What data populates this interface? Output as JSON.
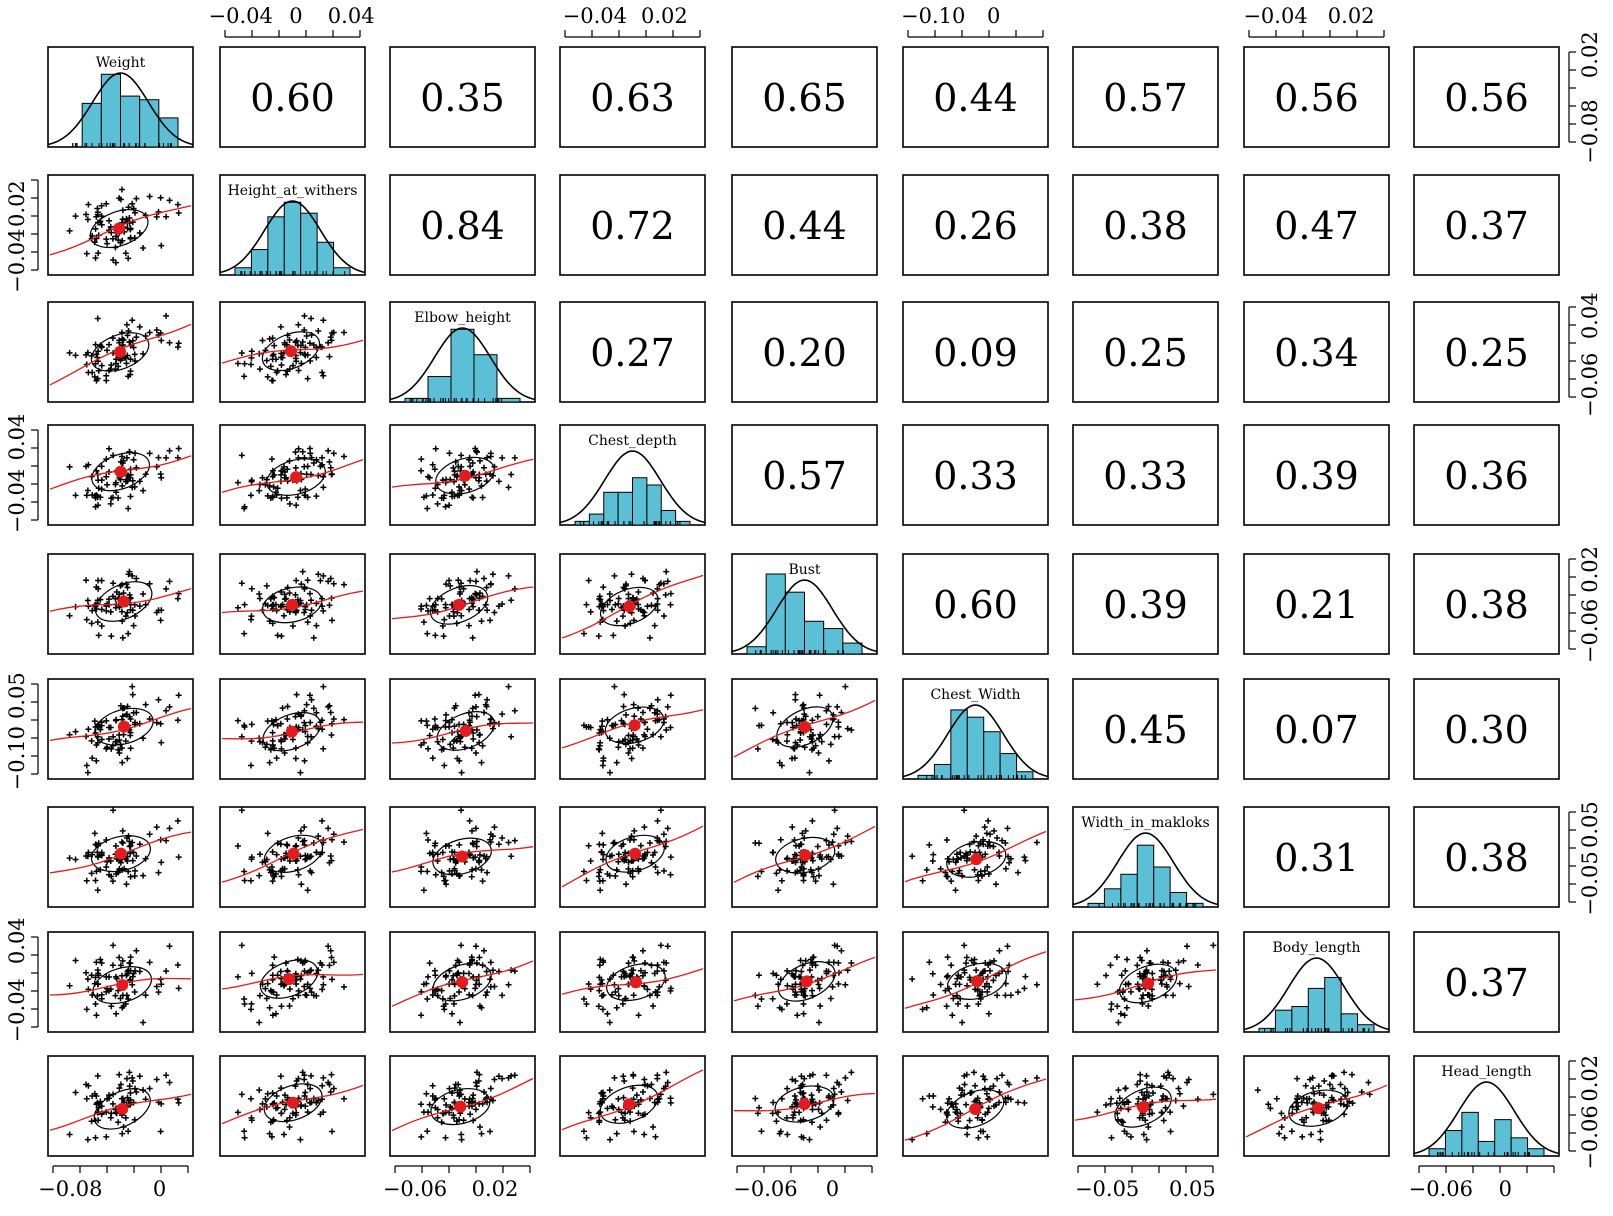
{
  "chart_data": {
    "type": "scatter-matrix",
    "variables": [
      "Weight",
      "Height_at_withers",
      "Elbow_height",
      "Chest_depth",
      "Bust",
      "Chest_Width",
      "Width_in_makloks",
      "Body_length",
      "Head_length"
    ],
    "correlations": [
      [
        "",
        "0.60",
        "0.35",
        "0.63",
        "0.65",
        "0.44",
        "0.57",
        "0.56",
        "0.56"
      ],
      [
        "",
        "",
        "0.84",
        "0.72",
        "0.44",
        "0.26",
        "0.38",
        "0.47",
        "0.37"
      ],
      [
        "",
        "",
        "",
        "0.27",
        "0.20",
        "0.09",
        "0.25",
        "0.34",
        "0.25"
      ],
      [
        "",
        "",
        "",
        "",
        "0.57",
        "0.33",
        "0.33",
        "0.39",
        "0.36"
      ],
      [
        "",
        "",
        "",
        "",
        "",
        "0.60",
        "0.39",
        "0.21",
        "0.38"
      ],
      [
        "",
        "",
        "",
        "",
        "",
        "",
        "0.45",
        "0.07",
        "0.30"
      ],
      [
        "",
        "",
        "",
        "",
        "",
        "",
        "",
        "0.31",
        "0.38"
      ],
      [
        "",
        "",
        "",
        "",
        "",
        "",
        "",
        "",
        "0.37"
      ]
    ],
    "axes": {
      "top": [
        {
          "col": 1,
          "ticks": [
            -0.04,
            0,
            0.04
          ],
          "labels": [
            "−0.04",
            "0",
            "0.04"
          ]
        },
        {
          "col": 3,
          "ticks": [
            -0.04,
            0.02
          ],
          "labels": [
            "−0.04",
            "0.02"
          ]
        },
        {
          "col": 5,
          "ticks": [
            -0.1,
            0
          ],
          "labels": [
            "−0.10",
            "0"
          ]
        },
        {
          "col": 7,
          "ticks": [
            -0.04,
            0.02
          ],
          "labels": [
            "−0.04",
            "0.02"
          ]
        }
      ],
      "bottom": [
        {
          "col": 0,
          "ticks": [
            -0.08,
            0
          ],
          "labels": [
            "−0.08",
            "0"
          ]
        },
        {
          "col": 2,
          "ticks": [
            -0.06,
            0.02
          ],
          "labels": [
            "−0.06",
            "0.02"
          ]
        },
        {
          "col": 4,
          "ticks": [
            -0.06,
            0
          ],
          "labels": [
            "−0.06",
            "0"
          ]
        },
        {
          "col": 6,
          "ticks": [
            -0.05,
            0.05
          ],
          "labels": [
            "−0.05",
            "0.05"
          ]
        },
        {
          "col": 8,
          "ticks": [
            -0.06,
            0
          ],
          "labels": [
            "−0.06",
            "0"
          ]
        }
      ],
      "left": [
        {
          "row": 1,
          "ticks": [
            -0.04,
            0.02
          ],
          "labels": [
            "−0.04",
            "0.02"
          ]
        },
        {
          "row": 3,
          "ticks": [
            -0.04,
            0.04
          ],
          "labels": [
            "−0.04",
            "0.04"
          ]
        },
        {
          "row": 5,
          "ticks": [
            -0.1,
            0.05
          ],
          "labels": [
            "−0.10",
            "0.05"
          ]
        },
        {
          "row": 7,
          "ticks": [
            -0.04,
            0.04
          ],
          "labels": [
            "−0.04",
            "0.04"
          ]
        }
      ],
      "right": [
        {
          "row": 0,
          "ticks": [
            -0.08,
            0.02
          ],
          "labels": [
            "−0.08",
            "0.02"
          ]
        },
        {
          "row": 2,
          "ticks": [
            -0.06,
            0.04
          ],
          "labels": [
            "−0.06",
            "0.04"
          ]
        },
        {
          "row": 4,
          "ticks": [
            -0.06,
            0.02
          ],
          "labels": [
            "−0.06",
            "0.02"
          ]
        },
        {
          "row": 6,
          "ticks": [
            -0.05,
            0.05
          ],
          "labels": [
            "−0.05",
            "0.05"
          ]
        },
        {
          "row": 8,
          "ticks": [
            -0.06,
            0.02
          ],
          "labels": [
            "−0.06",
            "0.02"
          ]
        }
      ]
    },
    "ranges": [
      [
        -0.1,
        0.03
      ],
      [
        -0.055,
        0.05
      ],
      [
        -0.085,
        0.06
      ],
      [
        -0.07,
        0.055
      ],
      [
        -0.09,
        0.04
      ],
      [
        -0.15,
        0.09
      ],
      [
        -0.09,
        0.08
      ],
      [
        -0.065,
        0.05
      ],
      [
        -0.085,
        0.05
      ]
    ],
    "histograms": [
      [
        0.0,
        0.12,
        0.2,
        0.14,
        0.13,
        0.08
      ],
      [
        0.02,
        0.07,
        0.16,
        0.2,
        0.17,
        0.09,
        0.02
      ],
      [
        0.01,
        0.07,
        0.2,
        0.13,
        0.01
      ],
      [
        0.01,
        0.03,
        0.09,
        0.09,
        0.13,
        0.11,
        0.04,
        0.01
      ],
      [
        0.02,
        0.22,
        0.17,
        0.09,
        0.07,
        0.03
      ],
      [
        0.01,
        0.04,
        0.19,
        0.17,
        0.13,
        0.07,
        0.02
      ],
      [
        0.01,
        0.05,
        0.09,
        0.17,
        0.11,
        0.04,
        0.01
      ],
      [
        0.01,
        0.06,
        0.07,
        0.12,
        0.15,
        0.05,
        0.02
      ],
      [
        0.02,
        0.07,
        0.12,
        0.04,
        0.1,
        0.05,
        0.02
      ]
    ],
    "colors": {
      "histogram": "#5bc0d6",
      "smoother": "#e41a1c",
      "point": "#000000"
    },
    "n_points": 80,
    "grid": false
  }
}
